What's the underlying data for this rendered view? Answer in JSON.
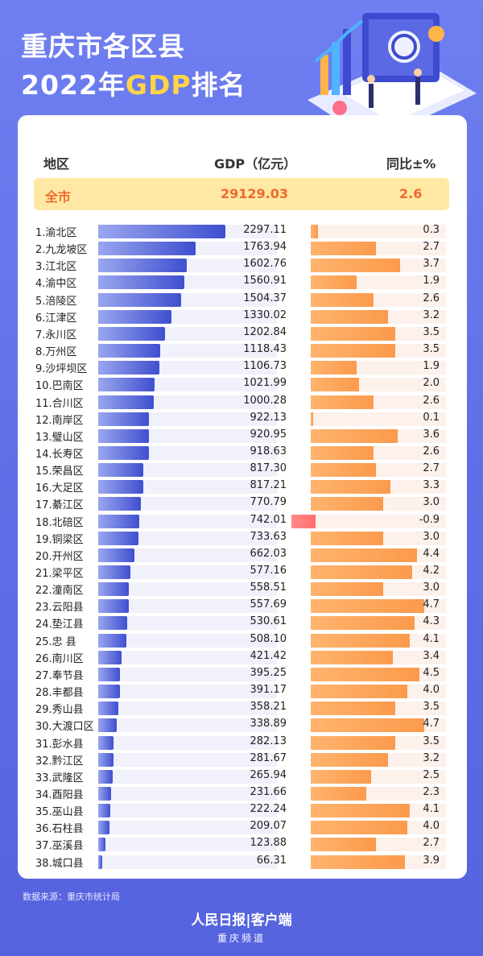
{
  "title": {
    "line1": "重庆市各区县",
    "line2_prefix": "2022年",
    "line2_gdp": "GDP",
    "line2_suffix": "排名"
  },
  "header": {
    "region": "地区",
    "gdp": "GDP（亿元）",
    "yoy": "同比±%"
  },
  "total": {
    "label": "全市",
    "gdp": "29129.03",
    "yoy": "2.6"
  },
  "colors": {
    "gdp_bar": "#4655d2",
    "yoy_bar": "#fb9a4c",
    "yoy_negative": "#ff6e6e",
    "total_text": "#ef6a2d",
    "title_accent": "#ffd447"
  },
  "chart_data": {
    "type": "bar",
    "categories": [
      "1.渝北区",
      "2.九龙坡区",
      "3.江北区",
      "4.渝中区",
      "5.涪陵区",
      "6.江津区",
      "7.永川区",
      "8.万州区",
      "9.沙坪坝区",
      "10.巴南区",
      "11.合川区",
      "12.南岸区",
      "13.璧山区",
      "14.长寿区",
      "15.荣昌区",
      "16.大足区",
      "17.綦江区",
      "18.北碚区",
      "19.铜梁区",
      "20.开州区",
      "21.梁平区",
      "22.潼南区",
      "23.云阳县",
      "24.垫江县",
      "25.忠  县",
      "26.南川区",
      "27.奉节县",
      "28.丰都县",
      "29.秀山县",
      "30.大渡口区",
      "31.彭水县",
      "32.黔江区",
      "33.武隆区",
      "34.酉阳县",
      "35.巫山县",
      "36.石柱县",
      "37.巫溪县",
      "38.城口县"
    ],
    "gdp": [
      2297.11,
      1763.94,
      1602.76,
      1560.91,
      1504.37,
      1330.02,
      1202.84,
      1118.43,
      1106.73,
      1021.99,
      1000.28,
      922.13,
      920.95,
      918.63,
      817.3,
      817.21,
      770.79,
      742.01,
      733.63,
      662.03,
      577.16,
      558.51,
      557.69,
      530.61,
      508.1,
      421.42,
      395.25,
      391.17,
      358.21,
      338.89,
      282.13,
      281.67,
      265.94,
      231.66,
      222.24,
      209.07,
      123.88,
      66.31
    ],
    "gdp_labels": [
      "2297.11",
      "1763.94",
      "1602.76",
      "1560.91",
      "1504.37",
      "1330.02",
      "1202.84",
      "1118.43",
      "1106.73",
      "1021.99",
      "1000.28",
      "922.13",
      "920.95",
      "918.63",
      "817.30",
      "817.21",
      "770.79",
      "742.01",
      "733.63",
      "662.03",
      "577.16",
      "558.51",
      "557.69",
      "530.61",
      "508.10",
      "421.42",
      "395.25",
      "391.17",
      "358.21",
      "338.89",
      "282.13",
      "281.67",
      "265.94",
      "231.66",
      "222.24",
      "209.07",
      "123.88",
      "66.31"
    ],
    "yoy": [
      0.3,
      2.7,
      3.7,
      1.9,
      2.6,
      3.2,
      3.5,
      3.5,
      1.9,
      2.0,
      2.6,
      0.1,
      3.6,
      2.6,
      2.7,
      3.3,
      3.0,
      -0.9,
      3.0,
      4.4,
      4.2,
      3.0,
      4.7,
      4.3,
      4.1,
      3.4,
      4.5,
      4.0,
      3.5,
      4.7,
      3.5,
      3.2,
      2.5,
      2.3,
      4.1,
      4.0,
      2.7,
      3.9
    ],
    "yoy_labels": [
      "0.3",
      "2.7",
      "3.7",
      "1.9",
      "2.6",
      "3.2",
      "3.5",
      "3.5",
      "1.9",
      "2.0",
      "2.6",
      "0.1",
      "3.6",
      "2.6",
      "2.7",
      "3.3",
      "3.0",
      "-0.9",
      "3.0",
      "4.4",
      "4.2",
      "3.0",
      "4.7",
      "4.3",
      "4.1",
      "3.4",
      "4.5",
      "4.0",
      "3.5",
      "4.7",
      "3.5",
      "3.2",
      "2.5",
      "2.3",
      "4.1",
      "4.0",
      "2.7",
      "3.9"
    ],
    "xlim_gdp": [
      0,
      2300
    ],
    "xlim_yoy": [
      0,
      5
    ]
  },
  "footer": {
    "source": "数据来源：重庆市统计局",
    "brand": "人民日报|客户端",
    "channel": "重庆频道"
  }
}
